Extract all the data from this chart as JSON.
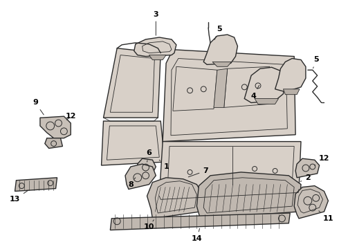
{
  "bg_color": "#ffffff",
  "line_color": "#2a2a2a",
  "fill_color": "#d8d0c8",
  "label_color": "#000000",
  "fig_width": 4.9,
  "fig_height": 3.6,
  "dpi": 100,
  "label_fs": 8,
  "lw_main": 1.0,
  "lw_thin": 0.6,
  "lw_hatch": 0.4
}
